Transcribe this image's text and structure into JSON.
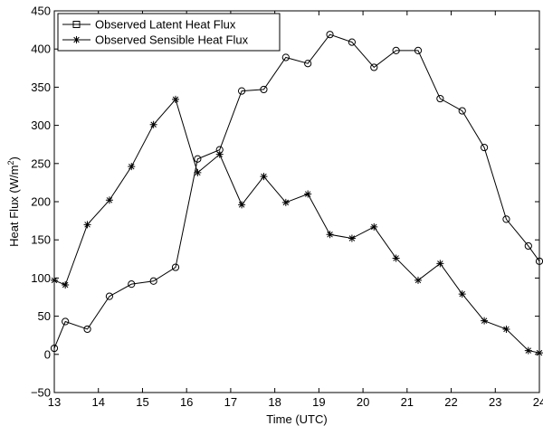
{
  "chart_data": {
    "type": "line",
    "title": "",
    "xlabel": "Time (UTC)",
    "ylabel_main": "Heat Flux (W/m",
    "ylabel_sup": "2",
    "ylabel_close": ")",
    "xlim": [
      13,
      24
    ],
    "ylim": [
      -50,
      450
    ],
    "xticks": [
      13,
      14,
      15,
      16,
      17,
      18,
      19,
      20,
      21,
      22,
      23,
      24
    ],
    "yticks": [
      -50,
      0,
      50,
      100,
      150,
      200,
      250,
      300,
      350,
      400,
      450
    ],
    "legend_position": "top-left",
    "colors": {
      "line": "#000000",
      "background": "#ffffff"
    },
    "series": [
      {
        "name": "Observed Latent Heat Flux",
        "marker": "circle",
        "x": [
          13.0,
          13.25,
          13.75,
          14.25,
          14.75,
          15.25,
          15.75,
          16.25,
          16.75,
          17.25,
          17.75,
          18.25,
          18.75,
          19.25,
          19.75,
          20.25,
          20.75,
          21.25,
          21.75,
          22.25,
          22.75,
          23.25,
          23.75,
          24.0
        ],
        "y": [
          8,
          43,
          33,
          76,
          92,
          96,
          114,
          256,
          268,
          345,
          347,
          389,
          381,
          419,
          409,
          376,
          398,
          398,
          335,
          319,
          271,
          177,
          142,
          122
        ]
      },
      {
        "name": "Observed Sensible Heat Flux",
        "marker": "asterisk",
        "x": [
          13.0,
          13.25,
          13.75,
          14.25,
          14.75,
          15.25,
          15.75,
          16.25,
          16.75,
          17.25,
          17.75,
          18.25,
          18.75,
          19.25,
          19.75,
          20.25,
          20.75,
          21.25,
          21.75,
          22.25,
          22.75,
          23.25,
          23.75,
          24.0
        ],
        "y": [
          97,
          91,
          170,
          202,
          246,
          301,
          334,
          238,
          262,
          196,
          233,
          199,
          210,
          157,
          152,
          167,
          126,
          97,
          119,
          79,
          44,
          33,
          5,
          2
        ]
      }
    ]
  }
}
